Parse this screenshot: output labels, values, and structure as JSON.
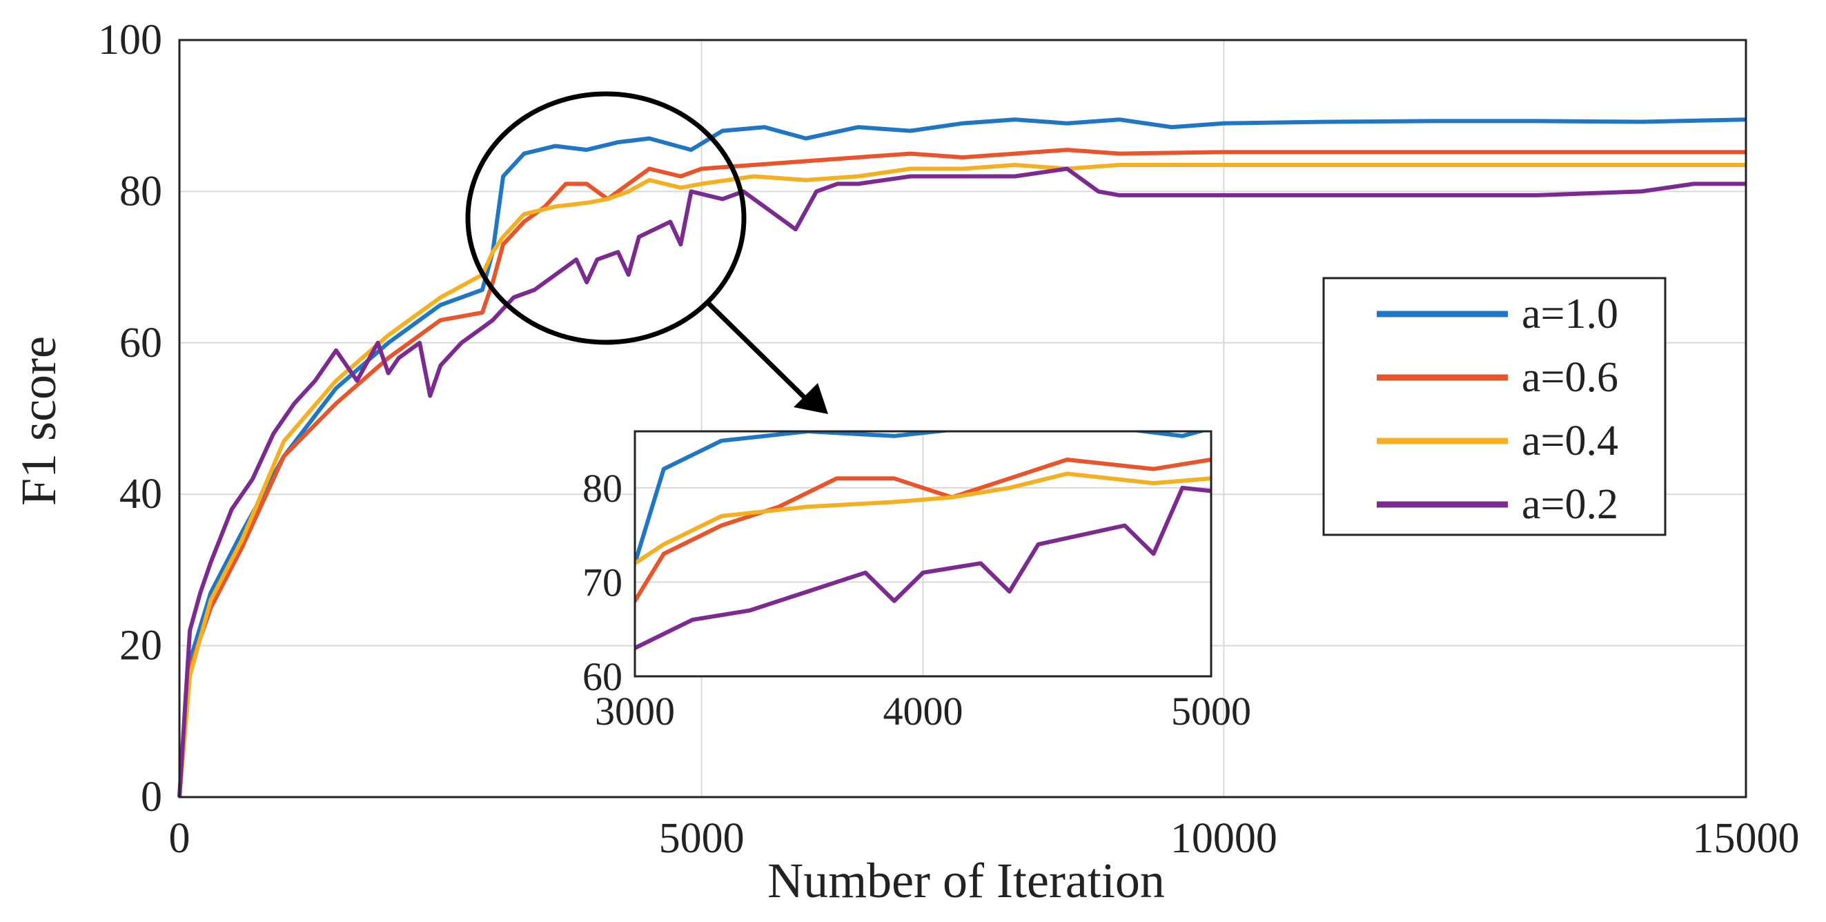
{
  "chart_data": {
    "type": "line",
    "xlabel": "Number of Iteration",
    "ylabel": "F1 score",
    "xlim": [
      0,
      15000
    ],
    "ylim": [
      0,
      100
    ],
    "xticks": [
      0,
      5000,
      10000,
      15000
    ],
    "yticks": [
      0,
      20,
      40,
      60,
      80,
      100
    ],
    "grid": true,
    "legend_position": "right",
    "series": [
      {
        "name": "a=1.0",
        "color": "#1f77c4",
        "x": [
          0,
          100,
          300,
          600,
          1000,
          1500,
          2000,
          2500,
          2900,
          3000,
          3100,
          3300,
          3600,
          3900,
          4200,
          4500,
          4900,
          5200,
          5600,
          6000,
          6500,
          7000,
          7500,
          8000,
          8500,
          9000,
          9500,
          10000,
          11000,
          12000,
          13000,
          14000,
          15000
        ],
        "y": [
          0,
          18,
          27,
          35,
          45,
          54,
          60,
          65,
          67,
          72,
          82,
          85,
          86,
          85.5,
          86.5,
          87,
          85.5,
          88,
          88.5,
          87,
          88.5,
          88,
          89,
          89.5,
          89,
          89.5,
          88.5,
          89,
          89.2,
          89.3,
          89.3,
          89.2,
          89.5
        ]
      },
      {
        "name": "a=0.6",
        "color": "#e8552a",
        "x": [
          0,
          100,
          300,
          600,
          1000,
          1500,
          2000,
          2500,
          2900,
          3000,
          3100,
          3300,
          3500,
          3700,
          3900,
          4100,
          4300,
          4500,
          4800,
          5000,
          5500,
          6000,
          6500,
          7000,
          7500,
          8000,
          8500,
          9000,
          10000,
          11000,
          12000,
          13000,
          14000,
          15000
        ],
        "y": [
          0,
          17,
          25,
          33,
          45,
          52,
          58,
          63,
          64,
          68,
          73,
          76,
          78,
          81,
          81,
          79,
          81,
          83,
          82,
          83,
          83.5,
          84,
          84.5,
          85,
          84.5,
          85,
          85.5,
          85,
          85.2,
          85.2,
          85.2,
          85.2,
          85.2,
          85.2
        ]
      },
      {
        "name": "a=0.4",
        "color": "#f4b022",
        "x": [
          0,
          100,
          300,
          600,
          1000,
          1500,
          2000,
          2500,
          2900,
          3000,
          3100,
          3300,
          3600,
          3900,
          4100,
          4300,
          4500,
          4800,
          5000,
          5500,
          6000,
          6500,
          7000,
          7500,
          8000,
          8500,
          9000,
          10000,
          11000,
          12000,
          13000,
          14000,
          15000
        ],
        "y": [
          0,
          16,
          26,
          34,
          47,
          55,
          61,
          66,
          69,
          72,
          74,
          77,
          78,
          78.5,
          79,
          80,
          81.5,
          80.5,
          81,
          82,
          81.5,
          82,
          83,
          83,
          83.5,
          83,
          83.5,
          83.5,
          83.5,
          83.5,
          83.5,
          83.5,
          83.5
        ]
      },
      {
        "name": "a=0.2",
        "color": "#7b2b8f",
        "x": [
          0,
          100,
          200,
          300,
          500,
          700,
          900,
          1100,
          1300,
          1500,
          1700,
          1900,
          2000,
          2100,
          2300,
          2400,
          2500,
          2700,
          2900,
          3000,
          3200,
          3400,
          3600,
          3800,
          3900,
          4000,
          4200,
          4300,
          4400,
          4700,
          4800,
          4900,
          5200,
          5400,
          5600,
          5900,
          6100,
          6300,
          6500,
          7000,
          7500,
          8000,
          8500,
          8800,
          9000,
          9500,
          10000,
          11000,
          12000,
          13000,
          14000,
          14500,
          15000
        ],
        "y": [
          0,
          22,
          27,
          31,
          38,
          42,
          48,
          52,
          55,
          59,
          55,
          60,
          56,
          58,
          60,
          53,
          57,
          60,
          62,
          63,
          66,
          67,
          69,
          71,
          68,
          71,
          72,
          69,
          74,
          76,
          73,
          80,
          79,
          80,
          78,
          75,
          80,
          81,
          81,
          82,
          82,
          82,
          83,
          80,
          79.5,
          79.5,
          79.5,
          79.5,
          79.5,
          79.5,
          80,
          81,
          81
        ]
      }
    ],
    "inset": {
      "xlim": [
        3000,
        5000
      ],
      "ylim": [
        60,
        86
      ],
      "xticks": [
        3000,
        4000,
        5000
      ],
      "yticks": [
        60,
        70,
        80
      ]
    }
  }
}
